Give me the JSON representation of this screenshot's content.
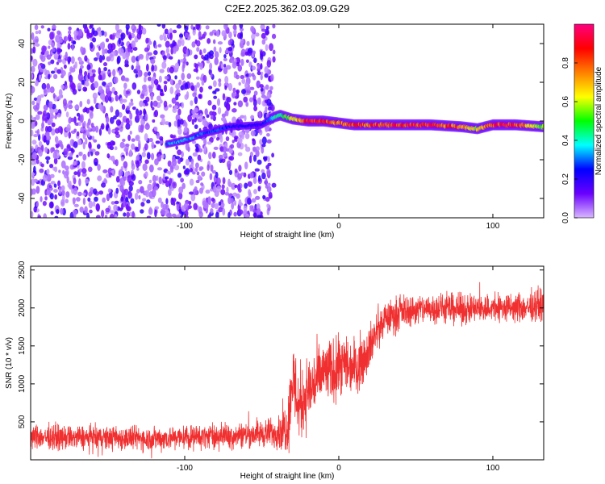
{
  "figure_title": "C2E2.2025.362.03.09.G29",
  "chart_data": [
    {
      "type": "heatmap",
      "xlabel": "Height of straight line (km)",
      "ylabel": "Frequency (Hz)",
      "xlim": [
        -200,
        133
      ],
      "ylim": [
        -50,
        50
      ],
      "xticks": [
        -100,
        0,
        100
      ],
      "xtick_labels": [
        "-100",
        "0",
        "100"
      ],
      "yticks": [
        -40,
        -20,
        0,
        20,
        40
      ],
      "ytick_labels": [
        "-40",
        "-20",
        "0",
        "20",
        "40"
      ],
      "colorbar": {
        "label": "Normalized spectral amplitude",
        "range": [
          0,
          1
        ],
        "ticks": [
          0,
          0.2,
          0.4,
          0.6,
          0.8
        ],
        "tick_labels": [
          "0.0",
          "0.2",
          "0.4",
          "0.6",
          "0.8"
        ],
        "colors": [
          "#d8b8ff",
          "#6a00ff",
          "#0000ff",
          "#00ffff",
          "#00ff00",
          "#ffff00",
          "#ff8000",
          "#ff0000",
          "#ff0080"
        ]
      },
      "noise_region_x": [
        -200,
        -42
      ],
      "signal_ridge": {
        "x": [
          -112,
          -100,
          -90,
          -80,
          -72,
          -50,
          -42,
          -38,
          -30,
          -20,
          -10,
          0,
          10,
          20,
          40,
          60,
          80,
          90,
          100,
          115,
          133
        ],
        "freq_hz": [
          -12,
          -10,
          -7,
          -5,
          -3,
          -2,
          2,
          3,
          1,
          0,
          0,
          -1,
          -2,
          -2,
          -2,
          -2,
          -3,
          -4,
          -2,
          -2,
          -3
        ],
        "amplitude": [
          0.3,
          0.35,
          0.3,
          0.28,
          0.25,
          0.2,
          0.4,
          0.45,
          0.6,
          0.85,
          0.85,
          0.75,
          0.8,
          0.8,
          0.85,
          0.85,
          0.75,
          0.6,
          0.85,
          0.85,
          0.5
        ]
      }
    },
    {
      "type": "line",
      "xlabel": "Height of straight line (km)",
      "ylabel": "SNR (10 * v/v)",
      "xlim": [
        -200,
        133
      ],
      "ylim": [
        0,
        2550
      ],
      "xticks": [
        -100,
        0,
        100
      ],
      "xtick_labels": [
        "-100",
        "0",
        "100"
      ],
      "yticks": [
        500,
        1000,
        1500,
        2000,
        2500
      ],
      "ytick_labels": [
        "500",
        "1000",
        "1500",
        "2000",
        "2500"
      ],
      "series": [
        {
          "name": "SNR",
          "color": "#f03030",
          "trend_x": [
            -200,
            -120,
            -70,
            -40,
            -33,
            -30,
            -26,
            -20,
            -10,
            0,
            10,
            15,
            20,
            25,
            30,
            40,
            60,
            80,
            100,
            120,
            133
          ],
          "trend_y": [
            300,
            280,
            320,
            360,
            450,
            1100,
            700,
            900,
            1150,
            1200,
            1250,
            1300,
            1500,
            1700,
            1850,
            1950,
            2000,
            1980,
            2000,
            2000,
            2050
          ],
          "noise_amplitude": [
            120,
            120,
            120,
            150,
            300,
            400,
            400,
            350,
            320,
            300,
            280,
            260,
            220,
            200,
            170,
            160,
            150,
            150,
            150,
            150,
            150
          ]
        }
      ]
    }
  ]
}
